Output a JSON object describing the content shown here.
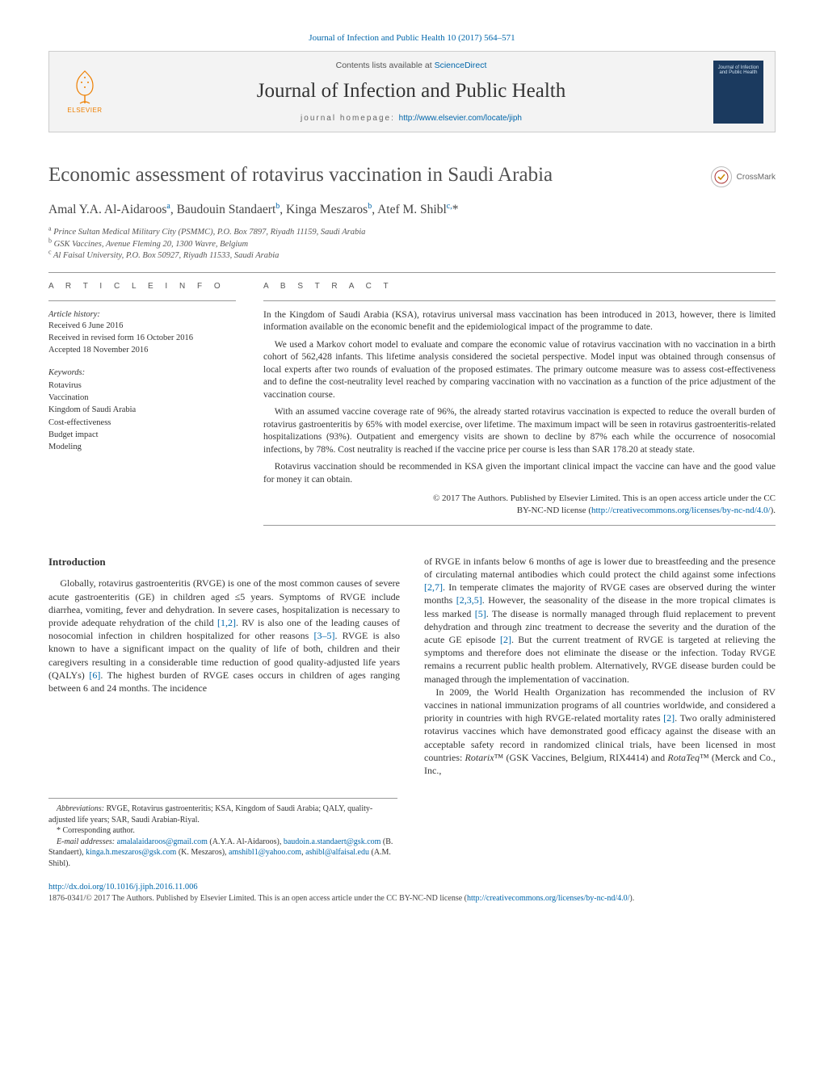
{
  "top_citation": "Journal of Infection and Public Health 10 (2017) 564–571",
  "masthead": {
    "contents_prefix": "Contents lists available at ",
    "contents_link": "ScienceDirect",
    "journal_name": "Journal of Infection and Public Health",
    "homepage_prefix": "journal homepage: ",
    "homepage_url": "http://www.elsevier.com/locate/jiph",
    "elsevier_word": "ELSEVIER",
    "cover_text": "Journal of Infection and Public Health"
  },
  "crossmark_label": "CrossMark",
  "article": {
    "title": "Economic assessment of rotavirus vaccination in Saudi Arabia",
    "authors_html": "Amal Y.A. Al-Aidaroos<sup>a</sup>, Baudouin Standaert<sup>b</sup>, Kinga Meszaros<sup>b</sup>, Atef M. Shibl<sup>c,</sup>*",
    "affiliations": [
      "a Prince Sultan Medical Military City (PSMMC), P.O. Box 7897, Riyadh 11159, Saudi Arabia",
      "b GSK Vaccines, Avenue Fleming 20, 1300 Wavre, Belgium",
      "c Al Faisal University, P.O. Box 50927, Riyadh 11533, Saudi Arabia"
    ]
  },
  "article_info": {
    "heading": "A R T I C L E    I N F O",
    "history_label": "Article history:",
    "received": "Received 6 June 2016",
    "revised": "Received in revised form 16 October 2016",
    "accepted": "Accepted 18 November 2016",
    "keywords_label": "Keywords:",
    "keywords": [
      "Rotavirus",
      "Vaccination",
      "Kingdom of Saudi Arabia",
      "Cost-effectiveness",
      "Budget impact",
      "Modeling"
    ]
  },
  "abstract": {
    "heading": "A B S T R A C T",
    "p1": "In the Kingdom of Saudi Arabia (KSA), rotavirus universal mass vaccination has been introduced in 2013, however, there is limited information available on the economic benefit and the epidemiological impact of the programme to date.",
    "p2": "We used a Markov cohort model to evaluate and compare the economic value of rotavirus vaccination with no vaccination in a birth cohort of 562,428 infants. This lifetime analysis considered the societal perspective. Model input was obtained through consensus of local experts after two rounds of evaluation of the proposed estimates. The primary outcome measure was to assess cost-effectiveness and to define the cost-neutrality level reached by comparing vaccination with no vaccination as a function of the price adjustment of the vaccination course.",
    "p3": "With an assumed vaccine coverage rate of 96%, the already started rotavirus vaccination is expected to reduce the overall burden of rotavirus gastroenteritis by 65% with model exercise, over lifetime. The maximum impact will be seen in rotavirus gastroenteritis-related hospitalizations (93%). Outpatient and emergency visits are shown to decline by 87% each while the occurrence of nosocomial infections, by 78%. Cost neutrality is reached if the vaccine price per course is less than SAR 178.20 at steady state.",
    "p4": "Rotavirus vaccination should be recommended in KSA given the important clinical impact the vaccine can have and the good value for money it can obtain.",
    "copyright_line1": "© 2017 The Authors. Published by Elsevier Limited. This is an open access article under the CC",
    "copyright_line2_prefix": "BY-NC-ND license (",
    "copyright_link": "http://creativecommons.org/licenses/by-nc-nd/4.0/",
    "copyright_line2_suffix": ")."
  },
  "body": {
    "intro_heading": "Introduction",
    "col1_html": "Globally, rotavirus gastroenteritis (RVGE) is one of the most common causes of severe acute gastroenteritis (GE) in children aged ≤5 years. Symptoms of RVGE include diarrhea, vomiting, fever and dehydration. In severe cases, hospitalization is necessary to provide adequate rehydration of the child <a>[1,2]</a>. RV is also one of the leading causes of nosocomial infection in children hospitalized for other reasons <a>[3–5]</a>. RVGE is also known to have a significant impact on the quality of life of both, children and their caregivers resulting in a considerable time reduction of good quality-adjusted life years (QALYs) <a>[6]</a>. The highest burden of RVGE cases occurs in children of ages ranging between 6 and 24 months. The incidence",
    "col2_p1_html": "of RVGE in infants below 6 months of age is lower due to breastfeeding and the presence of circulating maternal antibodies which could protect the child against some infections <a>[2,7]</a>. In temperate climates the majority of RVGE cases are observed during the winter months <a>[2,3,5]</a>. However, the seasonality of the disease in the more tropical climates is less marked <a>[5]</a>. The disease is normally managed through fluid replacement to prevent dehydration and through zinc treatment to decrease the severity and the duration of the acute GE episode <a>[2]</a>. But the current treatment of RVGE is targeted at relieving the symptoms and therefore does not eliminate the disease or the infection. Today RVGE remains a recurrent public health problem. Alternatively, RVGE disease burden could be managed through the implementation of vaccination.",
    "col2_p2_html": "In 2009, the World Health Organization has recommended the inclusion of RV vaccines in national immunization programs of all countries worldwide, and considered a priority in countries with high RVGE-related mortality rates <a>[2]</a>. Two orally administered rotavirus vaccines which have demonstrated good efficacy against the disease with an acceptable safety record in randomized clinical trials, have been licensed in most countries: <i>Rotarix</i>™ (GSK Vaccines, Belgium, RIX4414) and <i>RotaTeq</i>™ (Merck and Co., Inc.,"
  },
  "footnotes": {
    "abbr_label": "Abbreviations:",
    "abbr_text": " RVGE, Rotavirus gastroenteritis; KSA, Kingdom of Saudi Arabia; QALY, quality-adjusted life years; SAR, Saudi Arabian-Riyal.",
    "corr": "* Corresponding author.",
    "email_label": "E-mail addresses:",
    "emails_html": " <a>amalalaidaroos@gmail.com</a> (A.Y.A. Al-Aidaroos), <a>baudoin.a.standaert@gsk.com</a> (B. Standaert), <a>kinga.h.meszaros@gsk.com</a> (K. Meszaros), <a>amshibl1@yahoo.com</a>, <a>ashibl@alfaisal.edu</a> (A.M. Shibl)."
  },
  "doi": "http://dx.doi.org/10.1016/j.jiph.2016.11.006",
  "issn_line_html": "1876-0341/© 2017 The Authors. Published by Elsevier Limited. This is an open access article under the CC BY-NC-ND license (<a>http://creativecommons.org/licenses/by-nc-nd/4.0/</a>).",
  "colors": {
    "link": "#0066aa",
    "elsevier_orange": "#ee7f00",
    "rule": "#999999",
    "bg_masthead": "#f3f3f3",
    "cover_bg": "#1b3a5f"
  }
}
